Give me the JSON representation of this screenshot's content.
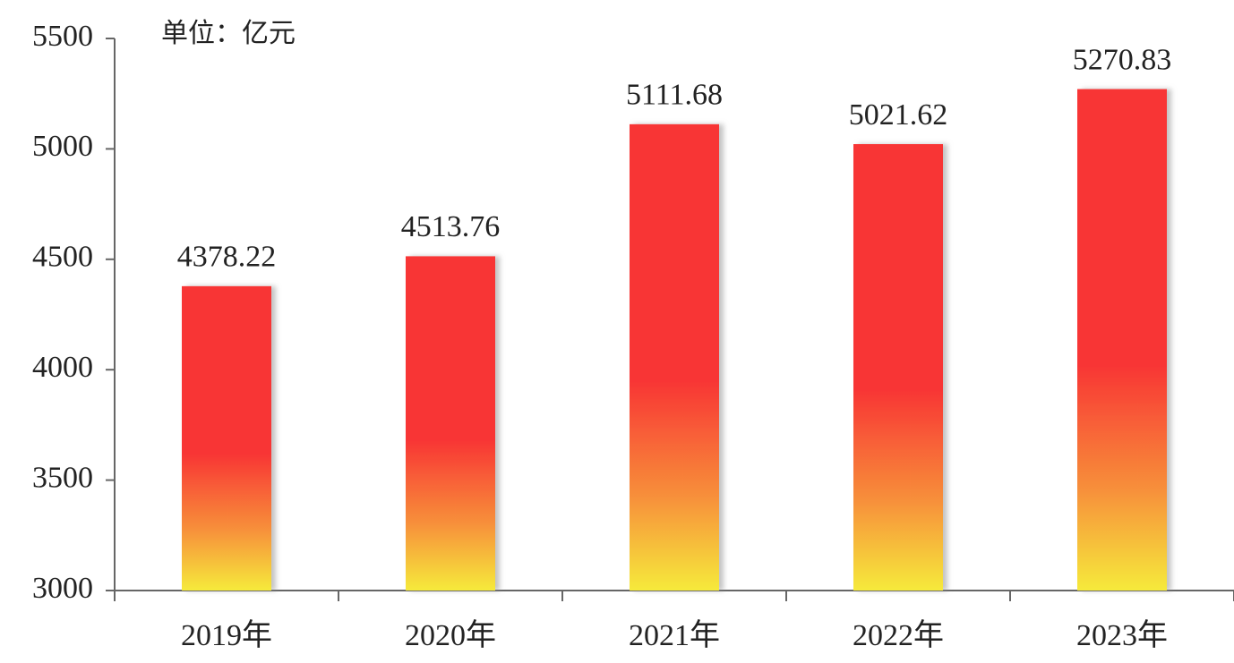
{
  "chart_data": {
    "type": "bar",
    "subtitle": "单位：亿元",
    "categories": [
      "2019年",
      "2020年",
      "2021年",
      "2022年",
      "2023年"
    ],
    "values": [
      4378.22,
      4513.76,
      5111.68,
      5021.62,
      5270.83
    ],
    "color": "#f83535",
    "ylim": [
      3000,
      5500
    ],
    "yticks": [
      3000,
      3500,
      4000,
      4500,
      5000,
      5500
    ],
    "grid": false
  }
}
